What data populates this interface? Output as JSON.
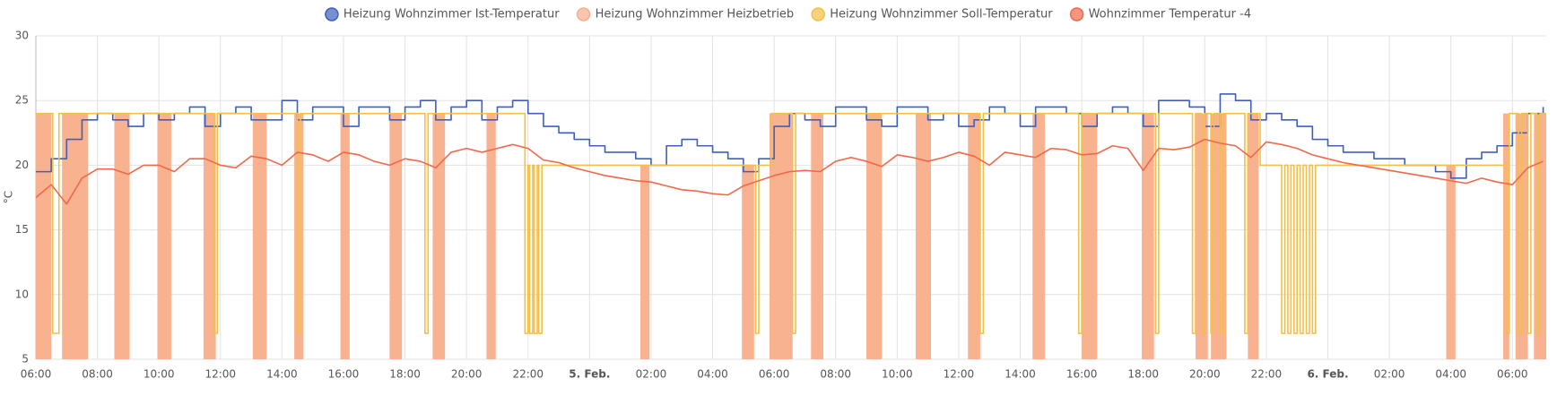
{
  "chart_data": {
    "type": "line",
    "y_label": "°C",
    "xlim": [
      0,
      49.1
    ],
    "ylim": [
      5,
      30
    ],
    "yticks": [
      5,
      10,
      15,
      20,
      25,
      30
    ],
    "xticks": [
      {
        "value": 0,
        "label": "06:00"
      },
      {
        "value": 2,
        "label": "08:00"
      },
      {
        "value": 4,
        "label": "10:00"
      },
      {
        "value": 6,
        "label": "12:00"
      },
      {
        "value": 8,
        "label": "14:00"
      },
      {
        "value": 10,
        "label": "16:00"
      },
      {
        "value": 12,
        "label": "18:00"
      },
      {
        "value": 14,
        "label": "20:00"
      },
      {
        "value": 16,
        "label": "22:00"
      },
      {
        "value": 18,
        "label": "5. Feb."
      },
      {
        "value": 20,
        "label": "02:00"
      },
      {
        "value": 22,
        "label": "04:00"
      },
      {
        "value": 24,
        "label": "06:00"
      },
      {
        "value": 26,
        "label": "08:00"
      },
      {
        "value": 28,
        "label": "10:00"
      },
      {
        "value": 30,
        "label": "12:00"
      },
      {
        "value": 32,
        "label": "14:00"
      },
      {
        "value": 34,
        "label": "16:00"
      },
      {
        "value": 36,
        "label": "18:00"
      },
      {
        "value": 38,
        "label": "20:00"
      },
      {
        "value": 40,
        "label": "22:00"
      },
      {
        "value": 42,
        "label": "6. Feb."
      },
      {
        "value": 44,
        "label": "02:00"
      },
      {
        "value": 46,
        "label": "04:00"
      },
      {
        "value": 48,
        "label": "06:00"
      }
    ],
    "grid": true,
    "legend": "top",
    "x": [
      0,
      0.5,
      1,
      1.5,
      2,
      2.5,
      3,
      3.5,
      4,
      4.5,
      5,
      5.5,
      6,
      6.5,
      7,
      7.5,
      8,
      8.5,
      9,
      9.5,
      10,
      10.5,
      11,
      11.5,
      12,
      12.5,
      13,
      13.5,
      14,
      14.5,
      15,
      15.5,
      16,
      16.5,
      17,
      17.5,
      18,
      18.5,
      19,
      19.5,
      20,
      20.5,
      21,
      21.5,
      22,
      22.5,
      23,
      23.5,
      24,
      24.5,
      25,
      25.5,
      26,
      26.5,
      27,
      27.5,
      28,
      28.5,
      29,
      29.5,
      30,
      30.5,
      31,
      31.5,
      32,
      32.5,
      33,
      33.5,
      34,
      34.5,
      35,
      35.5,
      36,
      36.5,
      37,
      37.5,
      38,
      38.5,
      39,
      39.5,
      40,
      40.5,
      41,
      41.5,
      42,
      42.5,
      43,
      43.5,
      44,
      44.5,
      45,
      45.5,
      46,
      46.5,
      47,
      47.5,
      48,
      48.5,
      49
    ],
    "series": [
      {
        "name": "Heizung Wohnzimmer Ist-Temperatur",
        "color": "#3f5fbf",
        "style": "step",
        "values": [
          19.5,
          20.5,
          22,
          23.5,
          24,
          23.5,
          23,
          24,
          23.5,
          24,
          24.5,
          23,
          24,
          24.5,
          23.5,
          23.5,
          25,
          23.5,
          24.5,
          24.5,
          23,
          24.5,
          24.5,
          23.5,
          24.5,
          25,
          23.5,
          24.5,
          25,
          23.5,
          24.5,
          25,
          24,
          23,
          22.5,
          22,
          21.5,
          21,
          21,
          20.5,
          20,
          21.5,
          22,
          21.5,
          21,
          20.5,
          19.5,
          20.5,
          23,
          24,
          23.5,
          23,
          24.5,
          24.5,
          23.5,
          23,
          24.5,
          24.5,
          23.5,
          24,
          23,
          23.5,
          24.5,
          24,
          23,
          24.5,
          24.5,
          24,
          23,
          24,
          24.5,
          24,
          23,
          25,
          25,
          24.5,
          23,
          25.5,
          25,
          23.5,
          24,
          23.5,
          23,
          22,
          21.5,
          21,
          21,
          20.5,
          20.5,
          20,
          20,
          19.5,
          19,
          20.5,
          21,
          21.5,
          22.5,
          24,
          24.5
        ]
      },
      {
        "name": "Heizung Wohnzimmer Heizbetrieb",
        "color": "#f9ae8a",
        "style": "band",
        "x": [
          0,
          0.5,
          0.85,
          1.7,
          2.55,
          3.05,
          3.95,
          4.4,
          5.45,
          5.85,
          7.05,
          7.5,
          8.4,
          8.7,
          9.9,
          10.2,
          11.5,
          11.9,
          12.9,
          13.3,
          14.65,
          14.95,
          19.65,
          19.95,
          22.95,
          23.35,
          23.85,
          24.6,
          25.2,
          25.6,
          27,
          27.5,
          28.6,
          29.1,
          30.3,
          30.7,
          32.4,
          32.8,
          34,
          34.5,
          35.95,
          36.35,
          37.7,
          38.1,
          38.2,
          38.7,
          39.4,
          39.75,
          45.85,
          46.15,
          47.7,
          47.9,
          48.1,
          48.5,
          48.7,
          49.1
        ],
        "values": [
          24,
          null,
          24,
          null,
          24,
          null,
          24,
          null,
          24,
          null,
          24,
          null,
          24,
          null,
          24,
          null,
          24,
          null,
          24,
          null,
          24,
          null,
          20,
          null,
          20,
          null,
          24,
          null,
          24,
          null,
          24,
          null,
          24,
          null,
          24,
          null,
          24,
          null,
          24,
          null,
          24,
          null,
          24,
          null,
          24,
          null,
          24,
          null,
          20,
          null,
          24,
          null,
          24,
          null,
          24,
          null
        ]
      },
      {
        "name": "Heizung Wohnzimmer Soll-Temperatur",
        "color": "#f4bf45",
        "style": "step",
        "x": [
          0,
          0.55,
          0.75,
          5.8,
          5.9,
          8.5,
          8.6,
          12.65,
          12.75,
          15.9,
          16,
          16.05,
          16.15,
          16.2,
          16.3,
          16.35,
          16.45,
          23.4,
          23.5,
          23.9,
          24.6,
          24.7,
          30.7,
          30.8,
          33.9,
          34,
          36.4,
          36.5,
          37.6,
          37.7,
          37.9,
          38,
          38.2,
          38.3,
          38.5,
          38.6,
          39.3,
          39.4,
          39.8,
          40.5,
          40.6,
          40.7,
          40.8,
          40.9,
          41,
          41.1,
          41.2,
          41.3,
          41.4,
          41.5,
          41.6,
          47.8,
          47.9,
          48.2,
          48.3,
          48.5,
          48.6,
          48.8,
          48.9,
          49.1
        ],
        "values": [
          24,
          7,
          24,
          7,
          24,
          7,
          24,
          7,
          24,
          7,
          20,
          7,
          20,
          7,
          20,
          7,
          20,
          7,
          20,
          24,
          7,
          24,
          7,
          24,
          7,
          24,
          7,
          24,
          7,
          24,
          7,
          24,
          7,
          24,
          7,
          24,
          7,
          24,
          20,
          7,
          20,
          7,
          20,
          7,
          20,
          7,
          20,
          7,
          20,
          7,
          20,
          7,
          24,
          7,
          24,
          7,
          24,
          7,
          24,
          24
        ]
      },
      {
        "name": "Wohnzimmer Temperatur -4",
        "color": "#f0694a",
        "style": "line",
        "values": [
          17.5,
          18.5,
          17,
          19,
          19.7,
          19.7,
          19.3,
          20,
          20,
          19.5,
          20.5,
          20.5,
          20,
          19.8,
          20.7,
          20.5,
          20,
          21,
          20.8,
          20.3,
          21,
          20.8,
          20.3,
          20,
          20.5,
          20.3,
          19.8,
          21,
          21.3,
          21,
          21.3,
          21.6,
          21.3,
          20.4,
          20.2,
          19.8,
          19.5,
          19.2,
          19,
          18.8,
          18.7,
          18.4,
          18.1,
          18,
          17.8,
          17.7,
          18.4,
          18.8,
          19.2,
          19.5,
          19.6,
          19.5,
          20.3,
          20.6,
          20.3,
          19.9,
          20.8,
          20.6,
          20.3,
          20.6,
          21,
          20.7,
          20,
          21,
          20.8,
          20.6,
          21.3,
          21.2,
          20.8,
          20.9,
          21.5,
          21.3,
          19.6,
          21.3,
          21.2,
          21.4,
          22,
          21.7,
          21.5,
          20.6,
          21.8,
          21.6,
          21.3,
          20.8,
          20.5,
          20.2,
          20,
          19.8,
          19.6,
          19.4,
          19.2,
          19,
          18.8,
          18.6,
          19,
          18.7,
          18.5,
          19.8,
          20.3
        ]
      }
    ]
  }
}
